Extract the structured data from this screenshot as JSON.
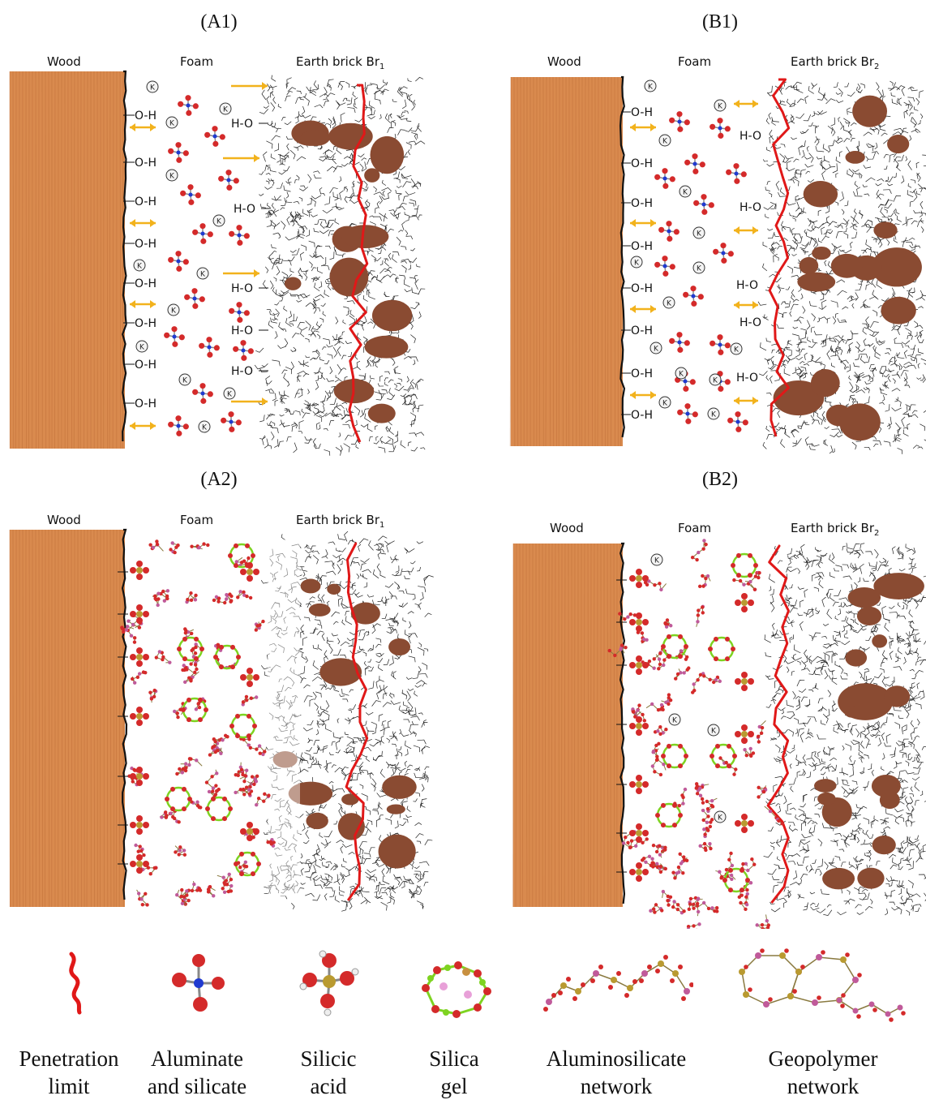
{
  "panels": {
    "a1": {
      "title": "(A1)",
      "wood": "Wood",
      "foam": "Foam",
      "brick": "Earth brick Br",
      "brick_sub": "1"
    },
    "b1": {
      "title": "(B1)",
      "wood": "Wood",
      "foam": "Foam",
      "brick": "Earth brick Br",
      "brick_sub": "2"
    },
    "a2": {
      "title": "(A2)",
      "wood": "Wood",
      "foam": "Foam",
      "brick": "Earth brick Br",
      "brick_sub": "1"
    },
    "b2": {
      "title": "(B2)",
      "wood": "Wood",
      "foam": "Foam",
      "brick": "Earth brick Br",
      "brick_sub": "2"
    }
  },
  "groups": {
    "oh": "O-H",
    "ho": "H-O",
    "k": "K"
  },
  "legend": [
    {
      "line1": "Penetration",
      "line2": "limit"
    },
    {
      "line1": "Aluminate",
      "line2": "and silicate"
    },
    {
      "line1": "Silicic",
      "line2": "acid"
    },
    {
      "line1": "Silica",
      "line2": "gel"
    },
    {
      "line1": "Aluminosilicate",
      "line2": "network"
    },
    {
      "line1": "Geopolymer",
      "line2": "network"
    }
  ],
  "colors": {
    "wood": "#d98a4e",
    "penetration": "#e01818",
    "grain": "#a35a2a",
    "oxygen": "#d42a2a",
    "aluminium": "#1f3ad0",
    "silicon": "#b99a30",
    "gel": "#7ed321",
    "network_node": "#c05a9a"
  }
}
